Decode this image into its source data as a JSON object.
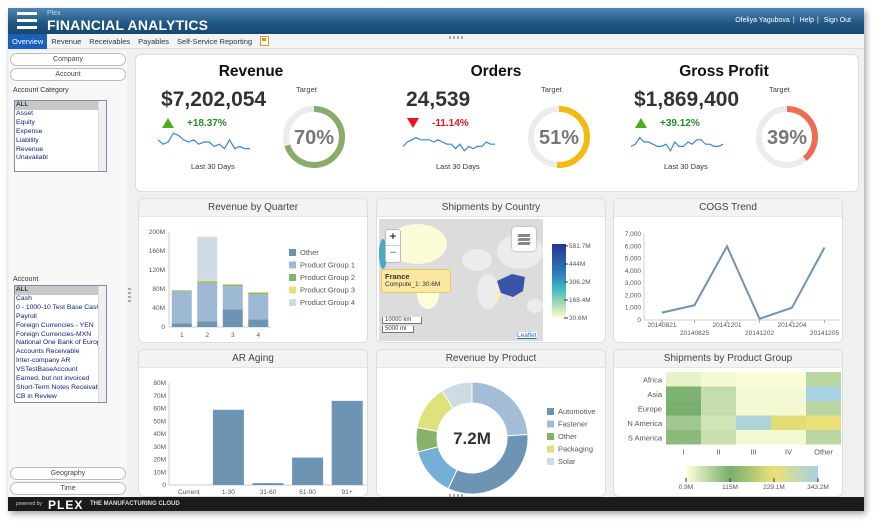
{
  "header": {
    "brand_small": "Plex",
    "title": "FINANCIAL ANALYTICS",
    "user": "Ofeliya Yagubova",
    "help": "Help",
    "signout": "Sign Out",
    "menu_icon": "hamburger-icon"
  },
  "tabs": [
    {
      "label": "Overview",
      "active": true
    },
    {
      "label": "Revenue"
    },
    {
      "label": "Receivables"
    },
    {
      "label": "Payables"
    },
    {
      "label": "Self-Service Reporting"
    }
  ],
  "sidebar": {
    "company": "Company",
    "account": "Account",
    "geography": "Geography",
    "time": "Time",
    "account_category_label": "Account Category",
    "account_categories": [
      "ALL",
      "Asset",
      "Equity",
      "Expense",
      "Liability",
      "Revenue",
      "Unavailabl"
    ],
    "account_label": "Account",
    "accounts": [
      "ALL",
      "Cash",
      "0 - 1000-10 Test Base Cash",
      "Payroll",
      "Foreign Currencies - YEN",
      "Foreign Currencies-MXN",
      "National One Bank of Europe",
      "Accounts Receivable",
      "Inter-company AR",
      "VSTestBaseAccount",
      "Earned, but not invoiced",
      "Short-Term Notes Receivable",
      "CB in Review"
    ]
  },
  "footer": {
    "powered": "powered by",
    "logo": "PLEX",
    "tagline": "THE MANUFACTURING CLOUD"
  },
  "kpis": [
    {
      "title": "Revenue",
      "value": "$7,202,054",
      "change": "+18.37%",
      "direction": "up",
      "target_label": "Target",
      "target_pct": 70,
      "target_text": "70%",
      "color": "#8aab6a",
      "spark_label": "Last 30 Days",
      "spark": [
        6,
        4,
        5,
        9,
        8,
        6,
        5,
        6,
        4,
        5,
        5,
        3,
        4,
        2,
        6,
        2,
        3,
        2,
        2
      ]
    },
    {
      "title": "Orders",
      "value": "24,539",
      "change": "-11.14%",
      "direction": "down",
      "target_label": "Target",
      "target_pct": 51,
      "target_text": "51%",
      "color": "#f2b90f",
      "spark_label": "Last 30 Days",
      "spark": [
        3,
        5,
        6,
        7,
        6,
        6,
        6,
        5,
        6,
        5,
        4,
        4,
        2,
        4,
        1,
        3,
        2,
        3,
        3,
        5,
        4,
        4
      ]
    },
    {
      "title": "Gross Profit",
      "value": "$1,869,400",
      "change": "+39.12%",
      "direction": "up",
      "target_label": "Target",
      "target_pct": 39,
      "target_text": "39%",
      "color": "#f06b55",
      "spark_label": "Last 30 Days",
      "spark": [
        3,
        4,
        7,
        5,
        5,
        4,
        3,
        3,
        4,
        1,
        5,
        3,
        3,
        5,
        4,
        6,
        6,
        4,
        4,
        3,
        3,
        4
      ]
    }
  ],
  "colors": {
    "up": "#4caf1a",
    "down": "#e8161b",
    "up_text": "#2a8a2a",
    "down_text": "#e8161b",
    "bar": "#6e94b4"
  },
  "chart_data": [
    {
      "id": "revenue_by_quarter",
      "type": "bar",
      "stacked": true,
      "title": "Revenue by Quarter",
      "categories": [
        "1",
        "2",
        "3",
        "4"
      ],
      "ylim": [
        0,
        200
      ],
      "yticks": [
        "0",
        "40M",
        "80M",
        "120M",
        "160M",
        "200M"
      ],
      "series": [
        {
          "name": "Other",
          "color": "#6e94b4",
          "values": [
            8,
            12,
            37,
            16
          ]
        },
        {
          "name": "Product Group 1",
          "color": "#9db8d3",
          "values": [
            68,
            82,
            49,
            53
          ]
        },
        {
          "name": "Product Group 2",
          "color": "#86b26a",
          "values": [
            1,
            2,
            3,
            3
          ]
        },
        {
          "name": "Product Group 3",
          "color": "#e0e47a",
          "values": [
            1,
            3,
            2,
            2
          ]
        },
        {
          "name": "Product Group 4",
          "color": "#cfdbe3",
          "values": [
            0,
            91,
            0,
            0
          ]
        }
      ],
      "legend": "right"
    },
    {
      "id": "shipments_by_country",
      "type": "heatmap",
      "title": "Shipments by Country",
      "scale_labels": [
        "581.7M",
        "444M",
        "306.2M",
        "168.4M",
        "30.6M"
      ],
      "tooltip": {
        "country": "France",
        "text": "Compute_1: 30.6M"
      },
      "scale_bar": [
        "10000 km",
        "5000 mi"
      ],
      "attribution": "Leaflet",
      "zoom_in": "+",
      "zoom_out": "−"
    },
    {
      "id": "cogs_trend",
      "type": "line",
      "title": "COGS Trend",
      "x": [
        "20140821",
        "20140825",
        "20141201",
        "20141202",
        "20141204",
        "20141205"
      ],
      "y": [
        600,
        1200,
        6000,
        100,
        1000,
        5900
      ],
      "ylim": [
        0,
        7000
      ],
      "yticks": [
        "0",
        "1,000",
        "2,000",
        "3,000",
        "4,000",
        "5,000",
        "6,000",
        "7,000"
      ],
      "color": "#6e94b4"
    },
    {
      "id": "ar_aging",
      "type": "bar",
      "title": "AR Aging",
      "categories": [
        "Current",
        "1-30",
        "31-60",
        "61-90",
        "91+"
      ],
      "values": [
        0,
        59,
        1.5,
        21.5,
        66
      ],
      "ylim": [
        0,
        80
      ],
      "yticks": [
        "0",
        "10M",
        "20M",
        "30M",
        "40M",
        "50M",
        "60M",
        "70M",
        "80M"
      ]
    },
    {
      "id": "revenue_by_product",
      "type": "pie",
      "title": "Revenue by Product",
      "center_label": "7.2M",
      "slices": [
        {
          "name": "Fastener",
          "value": 24,
          "color": "#a3bdd6"
        },
        {
          "name": "Automotive",
          "value": 33,
          "color": "#6e94b4"
        },
        {
          "name": "",
          "value": 14,
          "color": "#74afd6"
        },
        {
          "name": "Other",
          "value": 7,
          "color": "#86b26a"
        },
        {
          "name": "Packaging",
          "value": 13,
          "color": "#dfe27a"
        },
        {
          "name": "Solar",
          "value": 9,
          "color": "#cfdbe3"
        }
      ],
      "legend": [
        "Automotive",
        "Fastener",
        "Other",
        "Packaging",
        "Solar"
      ]
    },
    {
      "id": "shipments_by_product_group",
      "type": "heatmap",
      "title": "Shipments by Product Group",
      "rows": [
        "Africa",
        "Asia",
        "Europe",
        "N America",
        "S America"
      ],
      "columns": [
        "I",
        "II",
        "III",
        "IV",
        "Other"
      ],
      "values": [
        [
          20,
          10,
          5,
          5,
          60
        ],
        [
          110,
          50,
          10,
          10,
          340
        ],
        [
          115,
          50,
          10,
          10,
          60
        ],
        [
          80,
          40,
          330,
          220,
          230
        ],
        [
          100,
          45,
          10,
          10,
          60
        ]
      ],
      "scale": [
        0.9,
        115,
        229.1,
        343.2
      ],
      "scale_labels": [
        "0.9M",
        "115M",
        "229.1M",
        "343.2M"
      ]
    }
  ]
}
